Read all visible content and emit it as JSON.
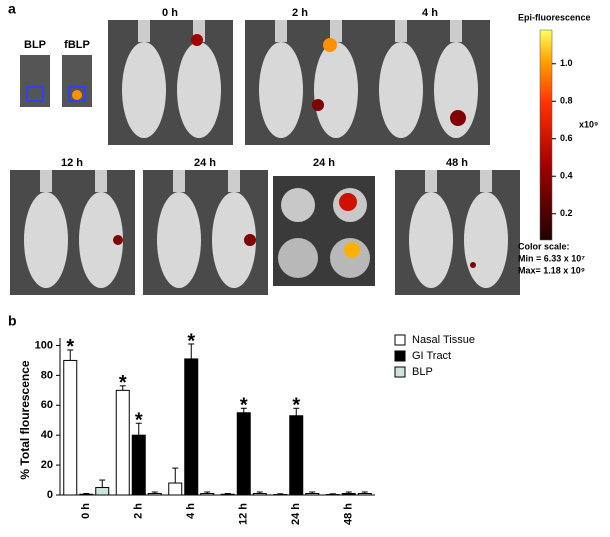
{
  "panel_a": {
    "label": "a",
    "tube_labels": [
      "BLP",
      "fBLP"
    ],
    "time_labels": [
      "0 h",
      "2 h",
      "4 h",
      "12 h",
      "24 h",
      "24 h",
      "48 h"
    ],
    "colorbar": {
      "title": "Epi-fluorescence",
      "unit": "x10⁹",
      "lim": [
        0.06,
        1.18
      ],
      "ticks": [
        0.2,
        0.4,
        0.6,
        0.8,
        {
          "value": 1,
          "label": "1.0"
        }
      ]
    },
    "color_scale": [
      "Color scale:",
      "Min = 6.33 x 10⁷",
      "Max= 1.18 x 10⁹"
    ]
  },
  "chart_data": {
    "type": "bar",
    "panel_label": "b",
    "ylabel": "% Total flourescence",
    "categories": [
      "0 h",
      "2 h",
      "4 h",
      "12 h",
      "24 h",
      "48 h"
    ],
    "ylim": [
      0,
      105
    ],
    "yticks": [
      0,
      20,
      40,
      60,
      80,
      100
    ],
    "series": [
      {
        "name": "Nasal Tissue",
        "color": "#ffffff",
        "values": [
          90,
          70,
          8,
          0.5,
          0.3,
          0.3
        ],
        "errors": [
          7,
          3,
          10,
          0.5,
          0.5,
          0.5
        ]
      },
      {
        "name": "GI Tract",
        "color": "#000000",
        "values": [
          0.5,
          40,
          91,
          55,
          53,
          1
        ],
        "errors": [
          0.5,
          8,
          10,
          3,
          5,
          1
        ]
      },
      {
        "name": "BLP",
        "color": "#cfe3df",
        "values": [
          5,
          1,
          1,
          1,
          1,
          1
        ],
        "errors": [
          5,
          1,
          1,
          1,
          1,
          1
        ]
      }
    ],
    "annotations": [
      {
        "text": "*",
        "category": "0 h",
        "series": "Nasal Tissue"
      },
      {
        "text": "*",
        "category": "2 h",
        "series": "Nasal Tissue"
      },
      {
        "text": "*",
        "category": "2 h",
        "series": "GI Tract"
      },
      {
        "text": "*",
        "category": "4 h",
        "series": "GI Tract"
      },
      {
        "text": "*",
        "category": "12 h",
        "series": "GI Tract"
      },
      {
        "text": "*",
        "category": "24 h",
        "series": "GI Tract"
      }
    ]
  }
}
